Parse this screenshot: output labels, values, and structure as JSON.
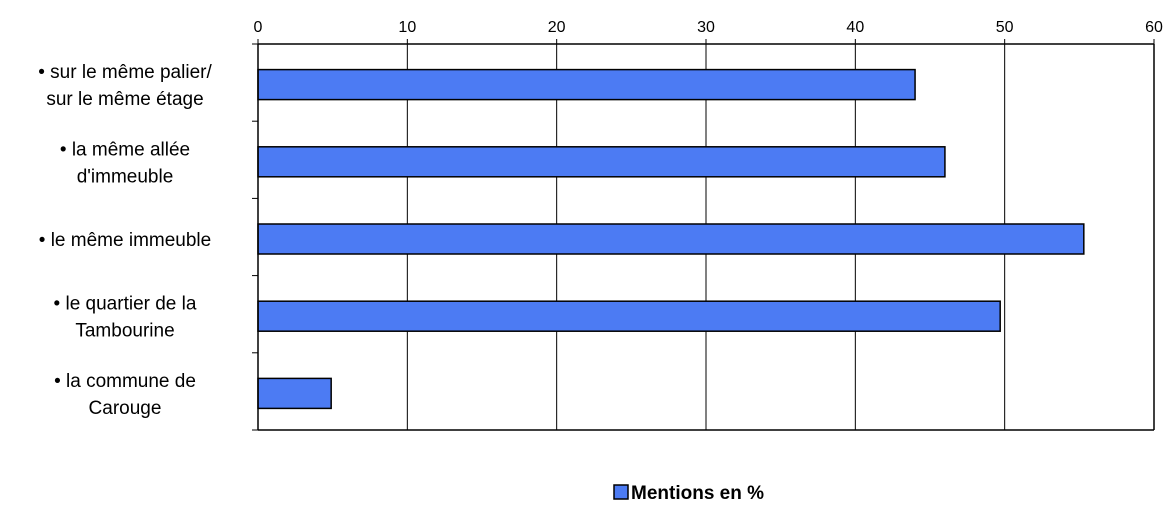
{
  "chart_data": {
    "type": "bar",
    "orientation": "horizontal",
    "categories": [
      [
        "• sur le même palier/",
        "sur le même étage"
      ],
      [
        "• la même allée",
        "d'immeuble"
      ],
      [
        "• le même immeuble"
      ],
      [
        "• le quartier de la",
        "Tambourine"
      ],
      [
        "• la commune de",
        "Carouge"
      ]
    ],
    "series": [
      {
        "name": "Mentions en %",
        "values": [
          44,
          46,
          55.3,
          49.7,
          4.9
        ]
      }
    ],
    "x_ticks": [
      "0",
      "10",
      "20",
      "30",
      "40",
      "50",
      "60"
    ],
    "xlim": [
      0,
      60
    ],
    "x_axis_position": "top",
    "grid": "vertical",
    "legend_position": "bottom-center",
    "colors": {
      "bar_fill": "#4C7BF3",
      "bar_stroke": "#000000",
      "axis": "#000000",
      "grid": "#000000"
    }
  },
  "legend": {
    "label": "Mentions en %"
  }
}
